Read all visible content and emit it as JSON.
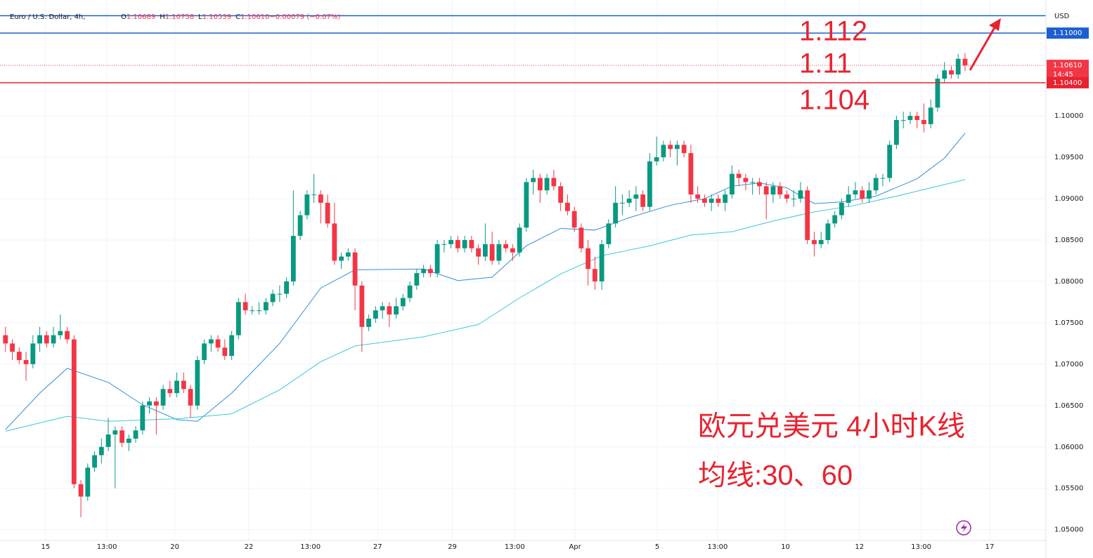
{
  "chart_data": {
    "type": "candlestick",
    "title": "Euro / U.S. Dollar, 4h,",
    "legend_values": [
      {
        "key": "O",
        "value": "1.10689"
      },
      {
        "key": "H",
        "value": "1.10758"
      },
      {
        "key": "L",
        "value": "1.10539"
      },
      {
        "key": "C",
        "value": "1.10610"
      },
      {
        "key": "",
        "value": "−0.00079 (−0.07%)"
      }
    ],
    "currency": "USD",
    "up_color": "#089981",
    "down_color": "#f23645",
    "ohlc": [
      [
        1.0735,
        1.0745,
        1.0715,
        1.0725
      ],
      [
        1.0725,
        1.073,
        1.0705,
        1.0715
      ],
      [
        1.0715,
        1.072,
        1.07,
        1.0705
      ],
      [
        1.0705,
        1.0715,
        1.068,
        1.07
      ],
      [
        1.07,
        1.0735,
        1.0695,
        1.0725
      ],
      [
        1.0725,
        1.0745,
        1.0715,
        1.0735
      ],
      [
        1.0735,
        1.074,
        1.072,
        1.0725
      ],
      [
        1.0725,
        1.0745,
        1.072,
        1.0735
      ],
      [
        1.0735,
        1.076,
        1.073,
        1.074
      ],
      [
        1.074,
        1.0745,
        1.0725,
        1.073
      ],
      [
        1.073,
        1.0735,
        1.055,
        1.0555
      ],
      [
        1.0555,
        1.056,
        1.0515,
        1.054
      ],
      [
        1.054,
        1.058,
        1.0535,
        1.0575
      ],
      [
        1.0575,
        1.0595,
        1.057,
        1.059
      ],
      [
        1.059,
        1.061,
        1.058,
        1.06
      ],
      [
        1.06,
        1.0635,
        1.0595,
        1.0615
      ],
      [
        1.0615,
        1.0625,
        1.055,
        1.062
      ],
      [
        1.062,
        1.0625,
        1.06,
        1.0605
      ],
      [
        1.0605,
        1.0615,
        1.0595,
        1.061
      ],
      [
        1.061,
        1.0625,
        1.0605,
        1.062
      ],
      [
        1.062,
        1.0655,
        1.0615,
        1.065
      ],
      [
        1.065,
        1.066,
        1.064,
        1.0655
      ],
      [
        1.0655,
        1.066,
        1.0615,
        1.065
      ],
      [
        1.065,
        1.0675,
        1.0645,
        1.067
      ],
      [
        1.067,
        1.068,
        1.066,
        1.0665
      ],
      [
        1.0665,
        1.069,
        1.066,
        1.068
      ],
      [
        1.068,
        1.069,
        1.0665,
        1.067
      ],
      [
        1.067,
        1.0675,
        1.0635,
        1.065
      ],
      [
        1.065,
        1.071,
        1.0645,
        1.0705
      ],
      [
        1.0705,
        1.073,
        1.07,
        1.0725
      ],
      [
        1.0725,
        1.0735,
        1.0715,
        1.073
      ],
      [
        1.073,
        1.0735,
        1.0715,
        1.072
      ],
      [
        1.072,
        1.073,
        1.0705,
        1.071
      ],
      [
        1.071,
        1.074,
        1.0705,
        1.0735
      ],
      [
        1.0735,
        1.078,
        1.073,
        1.0775
      ],
      [
        1.0775,
        1.0785,
        1.076,
        1.0765
      ],
      [
        1.0765,
        1.077,
        1.076,
        1.0765
      ],
      [
        1.0765,
        1.0775,
        1.076,
        1.0765
      ],
      [
        1.0765,
        1.078,
        1.076,
        1.0775
      ],
      [
        1.0775,
        1.079,
        1.077,
        1.0785
      ],
      [
        1.0785,
        1.0795,
        1.0775,
        1.0785
      ],
      [
        1.0785,
        1.0805,
        1.078,
        1.08
      ],
      [
        1.08,
        1.091,
        1.0795,
        1.0855
      ],
      [
        1.0855,
        1.0885,
        1.085,
        1.088
      ],
      [
        1.088,
        1.091,
        1.0875,
        1.0905
      ],
      [
        1.0905,
        1.093,
        1.0895,
        1.0905
      ],
      [
        1.0905,
        1.091,
        1.087,
        1.0895
      ],
      [
        1.0895,
        1.0905,
        1.0865,
        1.087
      ],
      [
        1.087,
        1.0895,
        1.082,
        1.0825
      ],
      [
        1.0825,
        1.0835,
        1.0815,
        1.083
      ],
      [
        1.083,
        1.084,
        1.0825,
        1.0835
      ],
      [
        1.0835,
        1.084,
        1.0765,
        1.0795
      ],
      [
        1.0795,
        1.08,
        1.0715,
        1.0745
      ],
      [
        1.0745,
        1.076,
        1.074,
        1.0755
      ],
      [
        1.0755,
        1.077,
        1.075,
        1.0765
      ],
      [
        1.0765,
        1.0775,
        1.0755,
        1.077
      ],
      [
        1.077,
        1.0775,
        1.0745,
        1.076
      ],
      [
        1.076,
        1.078,
        1.0755,
        1.077
      ],
      [
        1.077,
        1.0785,
        1.0765,
        1.078
      ],
      [
        1.078,
        1.08,
        1.0775,
        1.0795
      ],
      [
        1.0795,
        1.0815,
        1.079,
        1.081
      ],
      [
        1.081,
        1.082,
        1.0805,
        1.0815
      ],
      [
        1.0815,
        1.082,
        1.0805,
        1.081
      ],
      [
        1.081,
        1.085,
        1.0805,
        1.0845
      ],
      [
        1.0845,
        1.085,
        1.0835,
        1.0845
      ],
      [
        1.0845,
        1.0855,
        1.084,
        1.085
      ],
      [
        1.085,
        1.0855,
        1.0835,
        1.084
      ],
      [
        1.084,
        1.0855,
        1.0835,
        1.085
      ],
      [
        1.085,
        1.0855,
        1.0835,
        1.084
      ],
      [
        1.084,
        1.0845,
        1.082,
        1.083
      ],
      [
        1.083,
        1.087,
        1.0825,
        1.0845
      ],
      [
        1.0845,
        1.086,
        1.082,
        1.0825
      ],
      [
        1.0825,
        1.085,
        1.082,
        1.0845
      ],
      [
        1.0845,
        1.085,
        1.0835,
        1.084
      ],
      [
        1.084,
        1.0845,
        1.0825,
        1.0835
      ],
      [
        1.0835,
        1.087,
        1.083,
        1.0865
      ],
      [
        1.0865,
        1.0925,
        1.086,
        1.092
      ],
      [
        1.092,
        1.0935,
        1.0905,
        1.0925
      ],
      [
        1.0925,
        1.093,
        1.0895,
        1.091
      ],
      [
        1.091,
        1.093,
        1.0905,
        1.0925
      ],
      [
        1.0925,
        1.0935,
        1.091,
        1.0915
      ],
      [
        1.0915,
        1.092,
        1.0885,
        1.0895
      ],
      [
        1.0895,
        1.0905,
        1.088,
        1.0885
      ],
      [
        1.0885,
        1.089,
        1.086,
        1.0865
      ],
      [
        1.0865,
        1.087,
        1.0835,
        1.084
      ],
      [
        1.084,
        1.085,
        1.0795,
        1.0815
      ],
      [
        1.0815,
        1.083,
        1.079,
        1.08
      ],
      [
        1.08,
        1.085,
        1.079,
        1.0845
      ],
      [
        1.0845,
        1.0875,
        1.084,
        1.087
      ],
      [
        1.087,
        1.0915,
        1.0865,
        1.0895
      ],
      [
        1.0895,
        1.0905,
        1.088,
        1.0895
      ],
      [
        1.0895,
        1.091,
        1.089,
        1.09
      ],
      [
        1.09,
        1.0915,
        1.0885,
        1.0905
      ],
      [
        1.0905,
        1.091,
        1.0885,
        1.089
      ],
      [
        1.089,
        1.0955,
        1.0885,
        1.0945
      ],
      [
        1.0945,
        1.0975,
        1.094,
        1.095
      ],
      [
        1.095,
        1.097,
        1.0945,
        1.0965
      ],
      [
        1.0965,
        1.097,
        1.095,
        1.096
      ],
      [
        1.096,
        1.097,
        1.094,
        1.0965
      ],
      [
        1.0965,
        1.097,
        1.095,
        1.0955
      ],
      [
        1.0955,
        1.0965,
        1.0895,
        1.0905
      ],
      [
        1.0905,
        1.0915,
        1.0895,
        1.09
      ],
      [
        1.09,
        1.0905,
        1.089,
        1.0895
      ],
      [
        1.0895,
        1.0905,
        1.0885,
        1.09
      ],
      [
        1.09,
        1.0905,
        1.089,
        1.0895
      ],
      [
        1.0895,
        1.091,
        1.0885,
        1.0905
      ],
      [
        1.0905,
        1.094,
        1.09,
        1.093
      ],
      [
        1.093,
        1.0935,
        1.0915,
        1.0925
      ],
      [
        1.0925,
        1.093,
        1.091,
        1.092
      ],
      [
        1.092,
        1.0925,
        1.0905,
        1.092
      ],
      [
        1.092,
        1.0925,
        1.0905,
        1.0915
      ],
      [
        1.0915,
        1.092,
        1.0875,
        1.0905
      ],
      [
        1.0905,
        1.092,
        1.0895,
        1.0915
      ],
      [
        1.0915,
        1.092,
        1.09,
        1.0905
      ],
      [
        1.0905,
        1.091,
        1.0895,
        1.09
      ],
      [
        1.09,
        1.091,
        1.089,
        1.09
      ],
      [
        1.09,
        1.092,
        1.0895,
        1.091
      ],
      [
        1.091,
        1.0915,
        1.0845,
        1.085
      ],
      [
        1.085,
        1.086,
        1.083,
        1.0845
      ],
      [
        1.0845,
        1.086,
        1.084,
        1.085
      ],
      [
        1.085,
        1.0875,
        1.0845,
        1.087
      ],
      [
        1.087,
        1.0885,
        1.0865,
        1.088
      ],
      [
        1.088,
        1.09,
        1.0875,
        1.0895
      ],
      [
        1.0895,
        1.0915,
        1.089,
        1.0905
      ],
      [
        1.0905,
        1.092,
        1.09,
        1.091
      ],
      [
        1.091,
        1.0915,
        1.0895,
        1.09
      ],
      [
        1.09,
        1.092,
        1.0895,
        1.091
      ],
      [
        1.091,
        1.093,
        1.0905,
        1.0925
      ],
      [
        1.0925,
        1.093,
        1.0915,
        1.0925
      ],
      [
        1.0925,
        1.097,
        1.092,
        1.0965
      ],
      [
        1.0965,
        1.1,
        1.096,
        1.0995
      ],
      [
        1.0995,
        1.1005,
        1.0985,
        1.0995
      ],
      [
        1.0995,
        1.1005,
        1.099,
        1.1
      ],
      [
        1.1,
        1.1005,
        1.0985,
        1.0995
      ],
      [
        1.0995,
        1.1015,
        1.098,
        1.099
      ],
      [
        1.099,
        1.102,
        1.0985,
        1.101
      ],
      [
        1.101,
        1.105,
        1.1005,
        1.1045
      ],
      [
        1.1045,
        1.1065,
        1.104,
        1.1055
      ],
      [
        1.1055,
        1.106,
        1.1045,
        1.105
      ],
      [
        1.105,
        1.1075,
        1.1045,
        1.1069
      ],
      [
        1.1069,
        1.1076,
        1.1054,
        1.1061
      ]
    ],
    "lines": [
      {
        "color": "#2f8fd8",
        "x": [
          0,
          5,
          9,
          15,
          20,
          25,
          28,
          33,
          40,
          46,
          51,
          61,
          66,
          71,
          76,
          81,
          86,
          91,
          97,
          102,
          106,
          110,
          114,
          118,
          122,
          127,
          133,
          137,
          140
        ],
        "values": [
          1.0621,
          1.0665,
          1.0695,
          1.0678,
          1.0651,
          1.0633,
          1.0631,
          1.0665,
          1.0725,
          1.0792,
          1.0814,
          1.0815,
          1.0801,
          1.0805,
          1.0843,
          1.0864,
          1.0862,
          1.0877,
          1.0892,
          1.09,
          1.0915,
          1.0919,
          1.0913,
          1.0894,
          1.0896,
          1.0903,
          1.0924,
          1.0949,
          1.0979
        ]
      },
      {
        "color": "#3cc8d8",
        "x": [
          0,
          9,
          15,
          25,
          33,
          40,
          46,
          51,
          61,
          69,
          75,
          81,
          87,
          94,
          100,
          106,
          112,
          118,
          124,
          130,
          140
        ],
        "values": [
          1.0619,
          1.0637,
          1.0631,
          1.0634,
          1.064,
          1.0669,
          1.0703,
          1.0722,
          1.0733,
          1.0748,
          1.078,
          1.0809,
          1.0831,
          1.0843,
          1.0856,
          1.086,
          1.0873,
          1.0884,
          1.0892,
          1.0903,
          1.0923
        ]
      }
    ],
    "hlines": [
      {
        "value": 1.1121,
        "color": "#1e5fd0"
      },
      {
        "value": 1.11,
        "color": "#1e5fd0"
      },
      {
        "value": 1.104,
        "color": "#e8232f"
      }
    ],
    "last_price": {
      "value": 1.1061,
      "label": "1.10610",
      "countdown": "14:45",
      "color": "#f23645"
    },
    "price_labels": [
      {
        "value": 1.11,
        "label": "1.11000",
        "color": "#1e5fd0"
      },
      {
        "value": 1.104,
        "label": "1.10400",
        "color": "#e8232f"
      }
    ],
    "annotations": [
      "1.112",
      "1.11",
      "1.104",
      "欧元兑美元 4小时K线",
      "均线:30、60"
    ],
    "xlim": [
      -0.8,
      151.8
    ],
    "ylim": [
      1.0487,
      1.114
    ],
    "xticks": [
      {
        "value": 5.85,
        "label": "15"
      },
      {
        "value": 14.8,
        "label": "13:00"
      },
      {
        "value": 24.7,
        "label": "20"
      },
      {
        "value": 35.5,
        "label": "22"
      },
      {
        "value": 44.5,
        "label": "13:00"
      },
      {
        "value": 54.3,
        "label": "27"
      },
      {
        "value": 65.2,
        "label": "29"
      },
      {
        "value": 74.3,
        "label": "13:00"
      },
      {
        "value": 83.1,
        "label": "Apr"
      },
      {
        "value": 95.1,
        "label": "5"
      },
      {
        "value": 103.9,
        "label": "13:00"
      },
      {
        "value": 113.8,
        "label": "10"
      },
      {
        "value": 124.6,
        "label": "12"
      },
      {
        "value": 133.6,
        "label": "13:00"
      },
      {
        "value": 143.6,
        "label": "17"
      }
    ],
    "yticks": [
      {
        "value": 1.05,
        "label": "1.05000"
      },
      {
        "value": 1.055,
        "label": "1.05500"
      },
      {
        "value": 1.06,
        "label": "1.06000"
      },
      {
        "value": 1.065,
        "label": "1.06500"
      },
      {
        "value": 1.07,
        "label": "1.07000"
      },
      {
        "value": 1.075,
        "label": "1.07500"
      },
      {
        "value": 1.08,
        "label": "1.08000"
      },
      {
        "value": 1.085,
        "label": "1.08500"
      },
      {
        "value": 1.09,
        "label": "1.09000"
      },
      {
        "value": 1.095,
        "label": "1.09500"
      },
      {
        "value": 1.1,
        "label": "1.10000"
      }
    ]
  }
}
